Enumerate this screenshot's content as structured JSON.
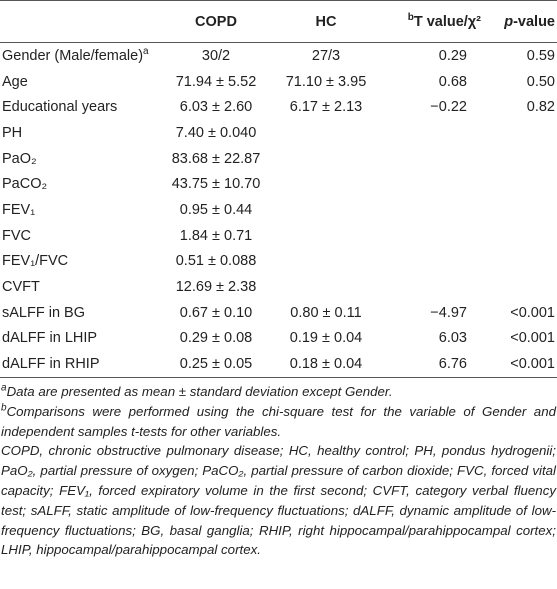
{
  "table": {
    "header": [
      {
        "text": "COPD"
      },
      {
        "text": "HC"
      },
      {
        "note": "b",
        "text": "T value/χ²"
      },
      {
        "italic": "p",
        "text": "-value"
      }
    ],
    "rows": [
      {
        "label": "Gender (Male/female)",
        "label_note": "a",
        "values": [
          "30/2",
          "27/3",
          "0.29",
          "0.59"
        ]
      },
      {
        "label": "Age",
        "values": [
          "71.94 ± 5.52",
          "71.10 ± 3.95",
          "0.68",
          "0.50"
        ]
      },
      {
        "label": "Educational years",
        "values": [
          "6.03 ± 2.60",
          "6.17 ± 2.13",
          "−0.22",
          "0.82"
        ]
      },
      {
        "label": "PH",
        "values": [
          "7.40 ± 0.040",
          null,
          null,
          null
        ]
      },
      {
        "label": "PaO₂",
        "values": [
          "83.68 ± 22.87",
          null,
          null,
          null
        ]
      },
      {
        "label": "PaCO₂",
        "values": [
          "43.75 ± 10.70",
          null,
          null,
          null
        ]
      },
      {
        "label": "FEV₁",
        "values": [
          "0.95 ± 0.44",
          null,
          null,
          null
        ]
      },
      {
        "label": "FVC",
        "values": [
          "1.84 ± 0.71",
          null,
          null,
          null
        ]
      },
      {
        "label": "FEV₁/FVC",
        "values": [
          "0.51 ± 0.088",
          null,
          null,
          null
        ]
      },
      {
        "label": "CVFT",
        "values": [
          "12.69 ± 2.38",
          null,
          null,
          null
        ]
      },
      {
        "label": "sALFF in BG",
        "values": [
          "0.67 ± 0.10",
          "0.80 ± 0.11",
          "−4.97",
          "<0.001"
        ]
      },
      {
        "label": "dALFF in LHIP",
        "values": [
          "0.29 ± 0.08",
          "0.19 ± 0.04",
          "6.03",
          "<0.001"
        ]
      },
      {
        "label": "dALFF in RHIP",
        "values": [
          "0.25 ± 0.05",
          "0.18 ± 0.04",
          "6.76",
          "<0.001"
        ]
      }
    ]
  },
  "footnotes": [
    {
      "note": "a",
      "text": "Data are presented as mean ± standard deviation except Gender."
    },
    {
      "note": "b",
      "text": "Comparisons were performed using the chi-square test for the variable of Gender and independent samples t-tests for other variables."
    },
    {
      "text": "COPD, chronic obstructive pulmonary disease; HC, healthy control; PH, pondus hydrogenii; PaO₂, partial pressure of oxygen; PaCO₂, partial pressure of carbon dioxide; FVC, forced vital capacity; FEV₁, forced expiratory volume in the first second; CVFT, category verbal fluency test; sALFF, static amplitude of low-frequency fluctuations; dALFF, dynamic amplitude of low-frequency fluctuations; BG, basal ganglia; RHIP, right hippocampal/parahippocampal cortex; LHIP, hippocampal/parahippocampal cortex."
    }
  ]
}
